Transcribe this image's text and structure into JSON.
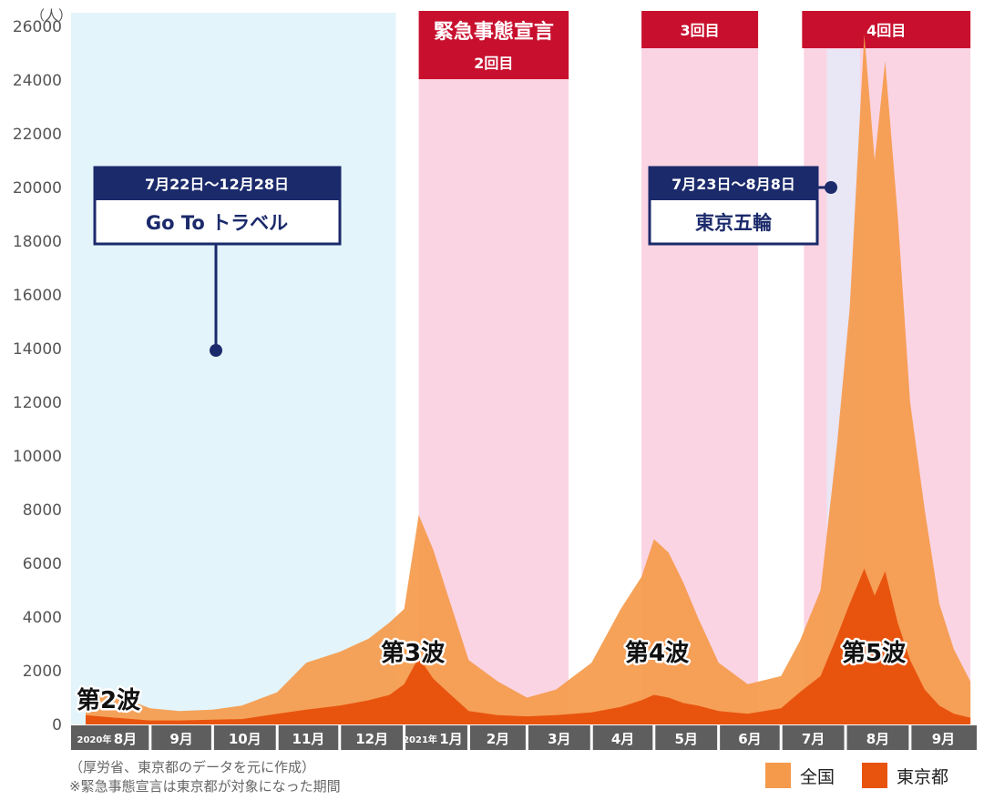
{
  "chart_data": {
    "type": "area",
    "unit_label": "（人）",
    "ylim": [
      0,
      26500
    ],
    "yticks": [
      0,
      2000,
      4000,
      6000,
      8000,
      10000,
      12000,
      14000,
      16000,
      18000,
      20000,
      22000,
      24000,
      26000
    ],
    "months": [
      "2020年",
      "8月",
      "9月",
      "10月",
      "11月",
      "12月",
      "2021年",
      "1月",
      "2月",
      "3月",
      "4月",
      "5月",
      "6月",
      "7月",
      "8月",
      "9月"
    ],
    "x": [
      "2020-08-01",
      "2020-08-15",
      "2020-09-01",
      "2020-09-15",
      "2020-10-01",
      "2020-10-15",
      "2020-11-01",
      "2020-11-15",
      "2020-12-01",
      "2020-12-15",
      "2020-12-25",
      "2021-01-01",
      "2021-01-08",
      "2021-01-15",
      "2021-01-22",
      "2021-02-01",
      "2021-02-15",
      "2021-03-01",
      "2021-03-15",
      "2021-04-01",
      "2021-04-15",
      "2021-04-25",
      "2021-05-01",
      "2021-05-08",
      "2021-05-15",
      "2021-05-22",
      "2021-06-01",
      "2021-06-15",
      "2021-07-01",
      "2021-07-10",
      "2021-07-20",
      "2021-07-28",
      "2021-08-03",
      "2021-08-10",
      "2021-08-15",
      "2021-08-20",
      "2021-08-26",
      "2021-09-01",
      "2021-09-08",
      "2021-09-15",
      "2021-09-22",
      "2021-09-30"
    ],
    "series": [
      {
        "name": "全国",
        "color": "#f59a4b",
        "values": [
          1400,
          1100,
          600,
          500,
          550,
          700,
          1200,
          2300,
          2700,
          3200,
          3800,
          4300,
          7800,
          6500,
          4800,
          2400,
          1600,
          1000,
          1300,
          2300,
          4300,
          5500,
          6900,
          6400,
          5300,
          4000,
          2300,
          1500,
          1800,
          3100,
          5000,
          10500,
          15500,
          25700,
          21000,
          24700,
          19000,
          12000,
          8000,
          4500,
          2800,
          1600
        ]
      },
      {
        "name": "東京都",
        "color": "#e8540e",
        "values": [
          350,
          250,
          150,
          150,
          180,
          200,
          400,
          550,
          700,
          900,
          1100,
          1500,
          2500,
          1700,
          1200,
          500,
          350,
          300,
          350,
          450,
          650,
          900,
          1100,
          1000,
          800,
          700,
          500,
          400,
          600,
          1200,
          1800,
          3300,
          4500,
          5800,
          4800,
          5700,
          3800,
          2400,
          1300,
          700,
          400,
          250
        ]
      }
    ],
    "annotations": {
      "waves": [
        "第2波",
        "第3波",
        "第4波",
        "第5波"
      ],
      "emergency_header": "緊急事態宣言",
      "emergency_periods": [
        {
          "label": "2回目",
          "start": "2021-01-08",
          "end": "2021-03-21"
        },
        {
          "label": "3回目",
          "start": "2021-04-25",
          "end": "2021-06-20"
        },
        {
          "label": "4回目",
          "start": "2021-07-12",
          "end": "2021-09-30"
        }
      ],
      "goto_travel": {
        "dates": "7月22日〜12月28日",
        "title": "Go To トラベル",
        "start": "2020-07-22",
        "end": "2020-12-28"
      },
      "olympics": {
        "dates": "7月23日〜8月8日",
        "title": "東京五輪",
        "start": "2021-07-23",
        "end": "2021-08-08"
      }
    }
  },
  "notes": [
    "（厚労省、東京都のデータを元に作成）",
    "※緊急事態宣言は東京都が対象になった期間"
  ],
  "legend": [
    {
      "label": "全国",
      "color": "#f59a4b"
    },
    {
      "label": "東京都",
      "color": "#e8540e"
    }
  ],
  "colors": {
    "goto_bg": "#e3f4fb",
    "emergency_bg": "#fad4e3",
    "olympics_bg": "#e9e6f5",
    "banner": "#c8102e",
    "callout": "#1b2a6b",
    "axis_band": "#5e5e5e"
  }
}
